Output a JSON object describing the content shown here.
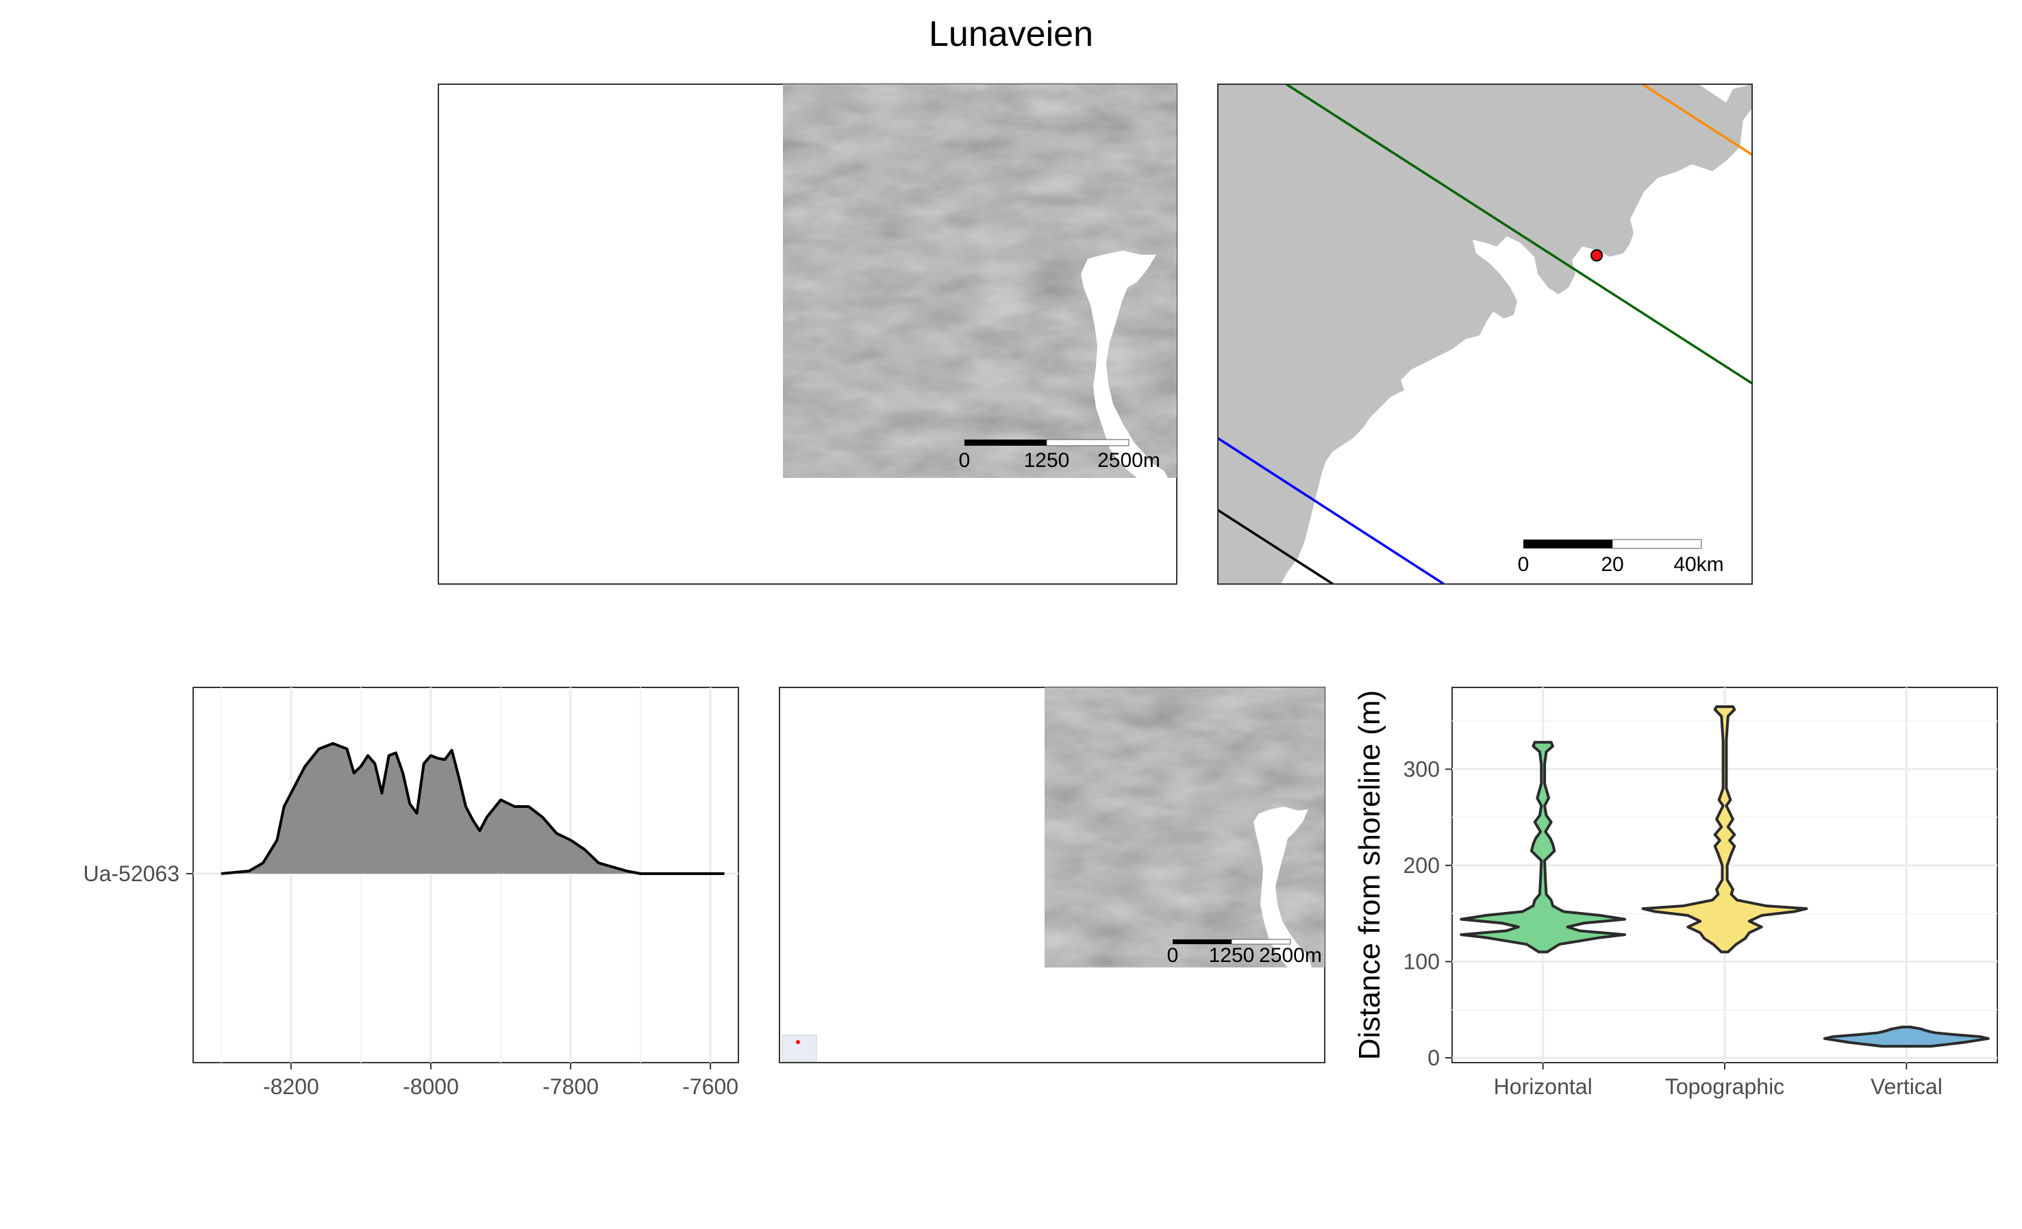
{
  "figure": {
    "title": "Lunaveien"
  },
  "map_overview": {
    "scalebar": {
      "labels": [
        "0",
        "1250",
        "2500m"
      ]
    }
  },
  "map_region": {
    "scalebar": {
      "labels": [
        "0",
        "20",
        "40km"
      ]
    },
    "site_color": "#ee1111",
    "line_colors": {
      "green": "#006400",
      "orange": "#ff8c00",
      "blue": "#0000ff",
      "black": "#000000"
    }
  },
  "map_detail": {
    "scalebar": {
      "labels": [
        "0",
        "1250",
        "2500m"
      ]
    }
  },
  "chart_data": [
    {
      "type": "area",
      "y_category": "Ua-52063",
      "x_ticks": [
        -8200,
        -8000,
        -7800,
        -7600
      ],
      "xlim": [
        -8340,
        -7560
      ],
      "x": [
        -8300,
        -8260,
        -8240,
        -8220,
        -8210,
        -8200,
        -8180,
        -8160,
        -8140,
        -8120,
        -8110,
        -8100,
        -8090,
        -8080,
        -8070,
        -8060,
        -8050,
        -8040,
        -8030,
        -8020,
        -8010,
        -8000,
        -7990,
        -7980,
        -7970,
        -7960,
        -7950,
        -7940,
        -7930,
        -7920,
        -7900,
        -7880,
        -7860,
        -7840,
        -7820,
        -7800,
        -7780,
        -7760,
        -7720,
        -7700,
        -7650,
        -7580
      ],
      "density": [
        0,
        0.02,
        0.08,
        0.25,
        0.5,
        0.6,
        0.8,
        0.93,
        0.97,
        0.93,
        0.75,
        0.8,
        0.88,
        0.82,
        0.6,
        0.88,
        0.9,
        0.75,
        0.52,
        0.45,
        0.82,
        0.88,
        0.86,
        0.85,
        0.92,
        0.72,
        0.5,
        0.4,
        0.32,
        0.42,
        0.55,
        0.5,
        0.5,
        0.42,
        0.3,
        0.25,
        0.18,
        0.08,
        0.02,
        0,
        0,
        0
      ]
    },
    {
      "type": "violin",
      "ylabel": "Distance from shoreline (m)",
      "categories": [
        "Horizontal",
        "Topographic",
        "Vertical"
      ],
      "y_ticks": [
        0,
        100,
        200,
        300
      ],
      "ylim": [
        -5,
        385
      ],
      "colors": [
        "#7ad391",
        "#f8e27c",
        "#76b3d8"
      ],
      "series": [
        {
          "name": "Horizontal",
          "y": [
            110,
            118,
            125,
            128,
            132,
            136,
            140,
            144,
            148,
            152,
            158,
            164,
            170,
            185,
            205,
            215,
            222,
            228,
            235,
            245,
            252,
            262,
            270,
            285,
            305,
            318,
            324,
            328
          ],
          "w": [
            0.05,
            0.2,
            0.7,
            1.0,
            0.45,
            0.3,
            0.5,
            1.0,
            0.7,
            0.25,
            0.12,
            0.1,
            0.04,
            0.03,
            0.02,
            0.14,
            0.12,
            0.09,
            0.03,
            0.1,
            0.04,
            0.02,
            0.07,
            0.02,
            0.02,
            0.04,
            0.12,
            0.1
          ]
        },
        {
          "name": "Topographic",
          "y": [
            110,
            118,
            124,
            130,
            136,
            142,
            148,
            152,
            155,
            158,
            164,
            170,
            175,
            185,
            200,
            212,
            220,
            226,
            232,
            240,
            248,
            255,
            262,
            268,
            280,
            300,
            330,
            355,
            362,
            365
          ],
          "w": [
            0.04,
            0.14,
            0.25,
            0.3,
            0.45,
            0.3,
            0.45,
            0.85,
            1.0,
            0.5,
            0.15,
            0.08,
            0.1,
            0.03,
            0.03,
            0.08,
            0.12,
            0.06,
            0.12,
            0.04,
            0.1,
            0.06,
            0.02,
            0.07,
            0.02,
            0.02,
            0.02,
            0.04,
            0.12,
            0.1
          ]
        },
        {
          "name": "Vertical",
          "y": [
            12,
            14,
            16,
            18,
            20,
            22,
            24,
            26,
            28,
            30,
            32
          ],
          "w": [
            0.3,
            0.5,
            0.7,
            0.85,
            1.0,
            0.9,
            0.6,
            0.35,
            0.25,
            0.18,
            0.05
          ]
        }
      ]
    }
  ]
}
